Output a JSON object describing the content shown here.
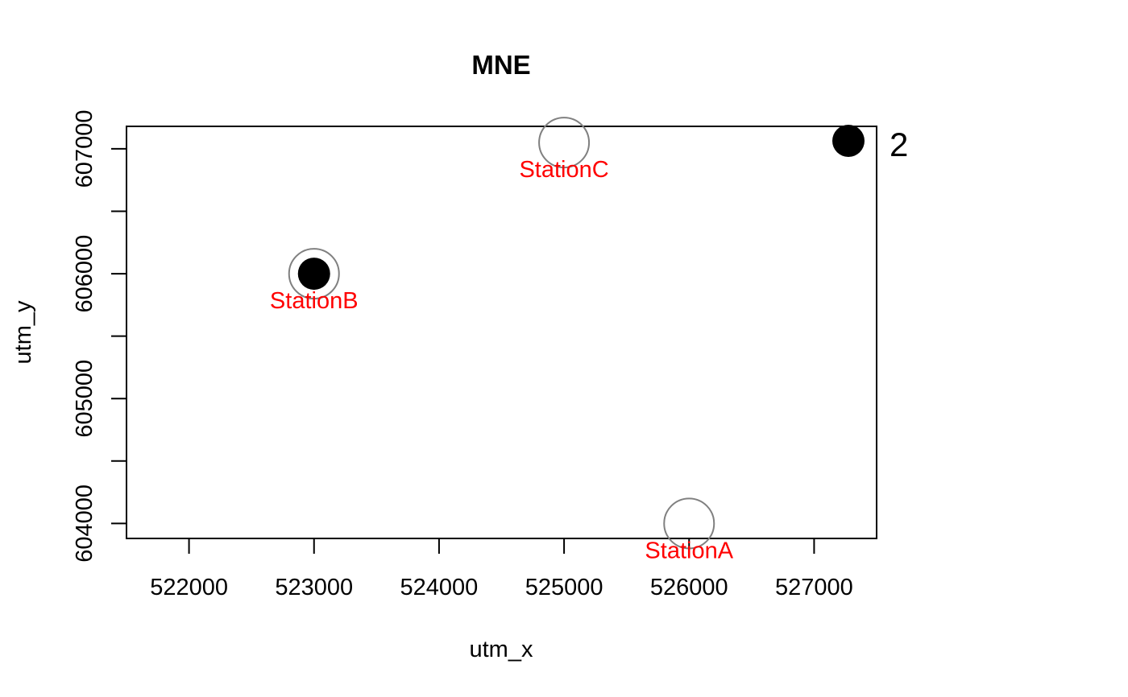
{
  "chart_data": {
    "type": "scatter",
    "title": "MNE",
    "xlabel": "utm_x",
    "ylabel": "utm_y",
    "xlim": [
      521500,
      527500
    ],
    "ylim": [
      603880,
      607180
    ],
    "x_ticks": [
      522000,
      523000,
      524000,
      525000,
      526000,
      527000
    ],
    "y_ticks": [
      604000,
      605000,
      606000,
      607000
    ],
    "y_minor_ticks": [
      604500,
      605500,
      606500
    ],
    "stations": [
      {
        "name": "StationA",
        "x": 526000,
        "y": 604000
      },
      {
        "name": "StationB",
        "x": 523000,
        "y": 606000
      },
      {
        "name": "StationC",
        "x": 525000,
        "y": 607050
      }
    ],
    "points": [
      {
        "x": 523000,
        "y": 606000
      }
    ],
    "legend": {
      "value": "2",
      "placement": "top-right, outside plot"
    },
    "grid": false,
    "colors": {
      "station_circle": "#808080",
      "station_label": "#ff0000",
      "point": "#000000"
    }
  }
}
